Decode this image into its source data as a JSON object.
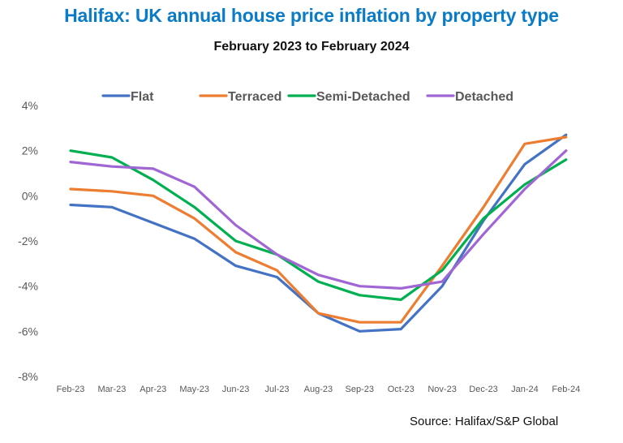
{
  "chart_data": {
    "type": "line",
    "title": "Halifax: UK annual house price inflation by property type",
    "subtitle": "February 2023 to February 2024",
    "xlabel": "",
    "ylabel": "",
    "source": "Source: Halifax/S&P Global",
    "categories": [
      "Feb-23",
      "Mar-23",
      "Apr-23",
      "May-23",
      "Jun-23",
      "Jul-23",
      "Aug-23",
      "Sep-23",
      "Oct-23",
      "Nov-23",
      "Dec-23",
      "Jan-24",
      "Feb-24"
    ],
    "ylim": [
      -8,
      4
    ],
    "yticks": [
      4,
      2,
      0,
      -2,
      -4,
      -6,
      -8
    ],
    "ytick_labels": [
      "4%",
      "2%",
      "0%",
      "-2%",
      "-4%",
      "-6%",
      "-8%"
    ],
    "grid": false,
    "legend_position": "top",
    "series": [
      {
        "name": "Flat",
        "color": "#4472C4",
        "values": [
          -0.4,
          -0.5,
          -1.2,
          -1.9,
          -3.1,
          -3.6,
          -5.2,
          -6.0,
          -5.9,
          -4.0,
          -1.1,
          1.4,
          2.7
        ]
      },
      {
        "name": "Terraced",
        "color": "#ED7D31",
        "values": [
          0.3,
          0.2,
          0.0,
          -1.0,
          -2.5,
          -3.3,
          -5.2,
          -5.6,
          -5.6,
          -3.1,
          -0.5,
          2.3,
          2.6
        ]
      },
      {
        "name": "Semi-Detached",
        "color": "#00B050",
        "values": [
          2.0,
          1.7,
          0.7,
          -0.5,
          -2.0,
          -2.6,
          -3.8,
          -4.4,
          -4.6,
          -3.3,
          -1.0,
          0.5,
          1.6
        ]
      },
      {
        "name": "Detached",
        "color": "#A066D3",
        "values": [
          1.5,
          1.3,
          1.2,
          0.4,
          -1.3,
          -2.6,
          -3.5,
          -4.0,
          -4.1,
          -3.8,
          -1.7,
          0.3,
          2.0
        ]
      }
    ]
  }
}
